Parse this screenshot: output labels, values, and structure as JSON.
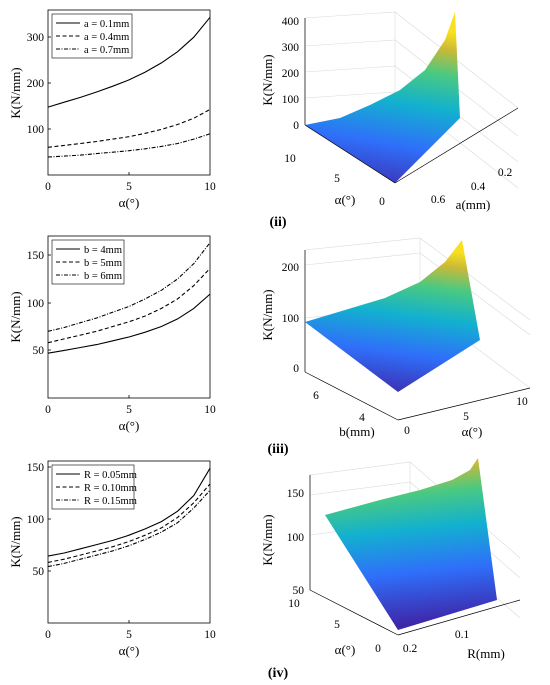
{
  "panel_labels": [
    "(ii)",
    "(iii)",
    "(iv)"
  ],
  "chart_data": [
    {
      "type": "line",
      "xlabel": "α(°)",
      "ylabel": "K(N/mm)",
      "xlim": [
        0,
        10
      ],
      "ylim": [
        0,
        340
      ],
      "xticks": [
        "0",
        "5",
        "10"
      ],
      "yticks": [
        "100",
        "200",
        "300"
      ],
      "ytick_values": [
        100,
        200,
        300
      ],
      "legend_position": "top-left",
      "x": [
        0,
        1,
        2,
        3,
        4,
        5,
        6,
        7,
        8,
        9,
        10
      ],
      "series": [
        {
          "name": "a = 0.1mm",
          "style": "solid",
          "values": [
            140,
            150,
            160,
            171,
            183,
            196,
            212,
            231,
            254,
            284,
            325
          ]
        },
        {
          "name": "a = 0.4mm",
          "style": "dashed",
          "values": [
            57,
            61,
            65,
            69,
            74,
            79,
            86,
            94,
            104,
            117,
            135
          ]
        },
        {
          "name": "a = 0.7mm",
          "style": "dashdot",
          "values": [
            37,
            39,
            41,
            44,
            47,
            50,
            54,
            59,
            65,
            74,
            85
          ]
        }
      ]
    },
    {
      "type": "surface",
      "zlabel": "K(N/mm)",
      "xlabel": "α(°)",
      "ylabel": "a(mm)",
      "zticks": [
        "0",
        "100",
        "200",
        "300",
        "400"
      ],
      "xticks": [
        "0",
        "5",
        "10"
      ],
      "yticks": [
        "0.6",
        "0.4",
        "0.2"
      ],
      "zlim": [
        0,
        450
      ],
      "colormap": [
        "#3e26a8",
        "#2f6ffa",
        "#12b1cf",
        "#49c982",
        "#cbb937",
        "#f8e01f"
      ]
    },
    {
      "type": "line",
      "xlabel": "α(°)",
      "ylabel": "K(N/mm)",
      "xlim": [
        0,
        10
      ],
      "ylim": [
        0,
        170
      ],
      "xticks": [
        "0",
        "5",
        "10"
      ],
      "yticks": [
        "50",
        "100",
        "150"
      ],
      "ytick_values": [
        50,
        100,
        150
      ],
      "legend_position": "top-left",
      "x": [
        0,
        1,
        2,
        3,
        4,
        5,
        6,
        7,
        8,
        9,
        10
      ],
      "series": [
        {
          "name": "b = 4mm",
          "style": "solid",
          "values": [
            47,
            50,
            53,
            56,
            60,
            64,
            69,
            75,
            83,
            94,
            109
          ]
        },
        {
          "name": "b = 5mm",
          "style": "dashed",
          "values": [
            58,
            62,
            66,
            70,
            75,
            80,
            86,
            94,
            104,
            118,
            136
          ]
        },
        {
          "name": "b = 6mm",
          "style": "dashdot",
          "values": [
            70,
            74,
            79,
            84,
            90,
            96,
            104,
            113,
            125,
            141,
            163
          ]
        }
      ]
    },
    {
      "type": "surface",
      "zlabel": "K(N/mm)",
      "xlabel": "α(°)",
      "ylabel": "b(mm)",
      "zticks": [
        "0",
        "100",
        "200"
      ],
      "xticks": [
        "0",
        "5",
        "10"
      ],
      "yticks": [
        "6",
        "4"
      ],
      "zlim": [
        0,
        230
      ],
      "colormap": [
        "#3e26a8",
        "#2f6ffa",
        "#12b1cf",
        "#49c982",
        "#cbb937",
        "#f8e01f"
      ]
    },
    {
      "type": "line",
      "xlabel": "α(°)",
      "ylabel": "K(N/mm)",
      "xlim": [
        0,
        10
      ],
      "ylim": [
        0,
        155
      ],
      "xticks": [
        "0",
        "5",
        "10"
      ],
      "yticks": [
        "50",
        "100",
        "150"
      ],
      "ytick_values": [
        50,
        100,
        150
      ],
      "legend_position": "top-left",
      "x": [
        0,
        1,
        2,
        3,
        4,
        5,
        6,
        7,
        8,
        9,
        10
      ],
      "series": [
        {
          "name": "R = 0.05mm",
          "style": "solid",
          "values": [
            64,
            67,
            71,
            75,
            79,
            84,
            90,
            97,
            107,
            122,
            148
          ]
        },
        {
          "name": "R = 0.10mm",
          "style": "dashed",
          "values": [
            58,
            61,
            65,
            69,
            73,
            78,
            84,
            91,
            101,
            115,
            133
          ]
        },
        {
          "name": "R = 0.15mm",
          "style": "dashdot",
          "values": [
            54,
            57,
            61,
            65,
            69,
            74,
            80,
            87,
            96,
            110,
            127
          ]
        }
      ]
    },
    {
      "type": "surface",
      "zlabel": "K(N/mm)",
      "xlabel": "α(°)",
      "ylabel": "R(mm)",
      "zticks": [
        "50",
        "100",
        "150"
      ],
      "xticks": [
        "10",
        "5",
        "0"
      ],
      "yticks": [
        "0.2",
        "0.1"
      ],
      "zlim": [
        40,
        160
      ],
      "colormap": [
        "#3e26a8",
        "#2f6ffa",
        "#12b1cf",
        "#49c982",
        "#cbb937",
        "#f8e01f"
      ]
    }
  ]
}
